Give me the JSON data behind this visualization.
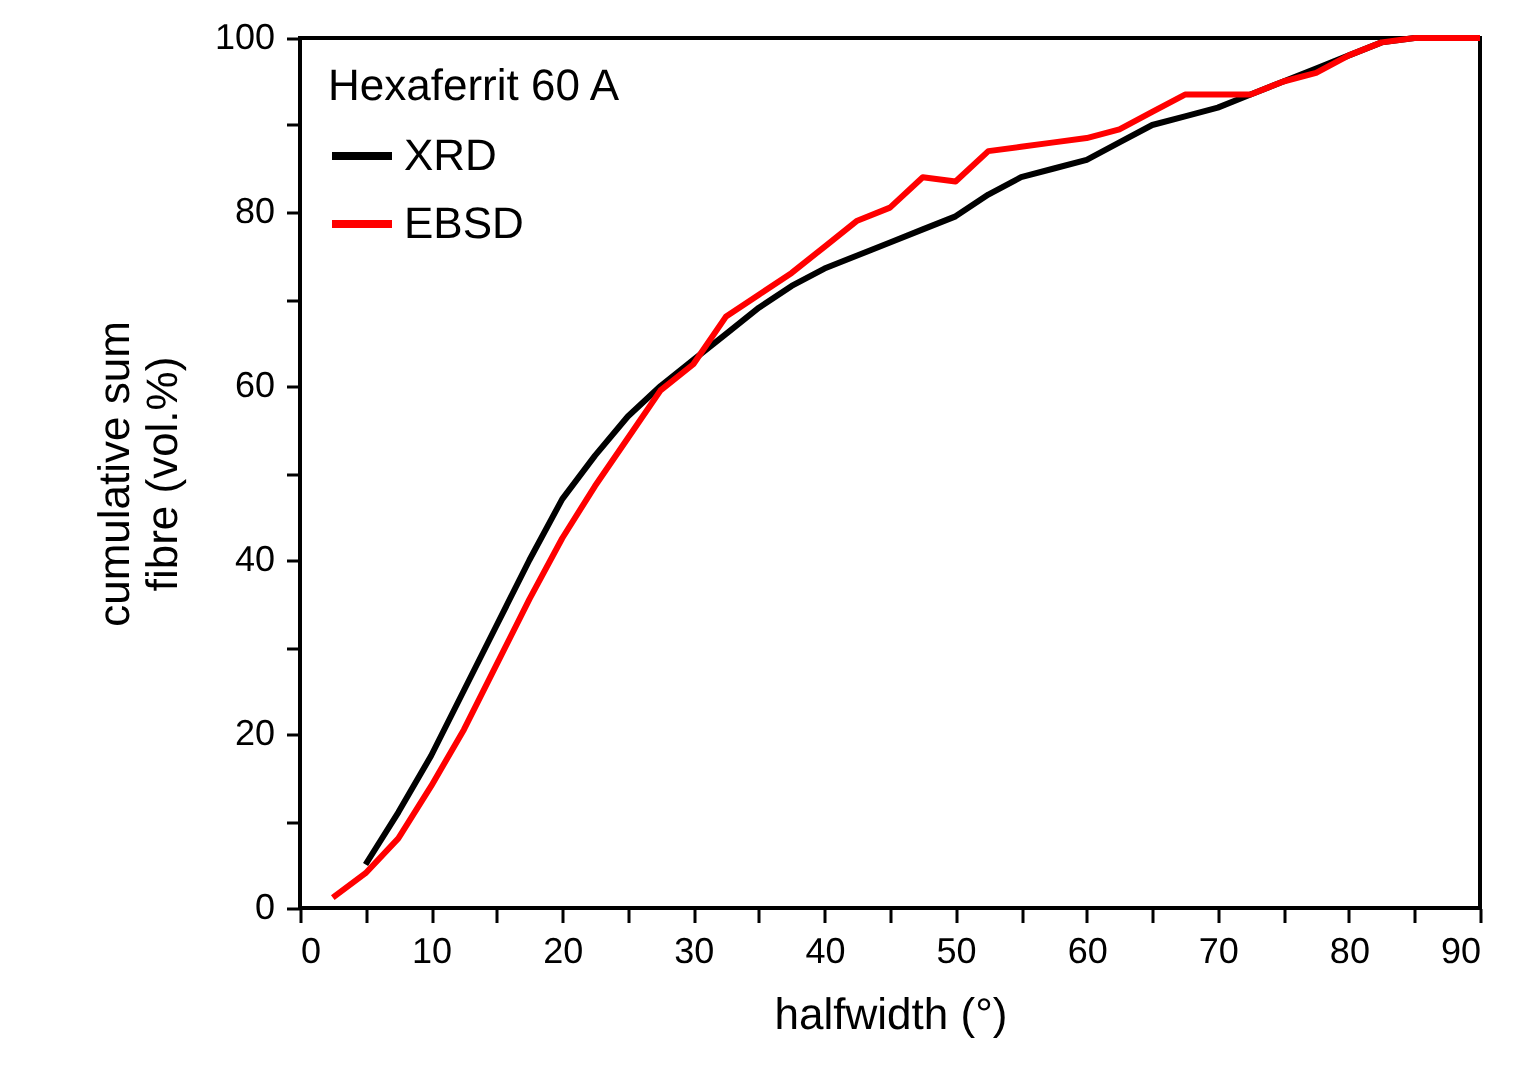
{
  "chart_data": {
    "type": "line",
    "xlabel": "halfwidth (°)",
    "ylabel": "cumulative sum fibre (vol.%)",
    "legend_title": "Hexaferrit 60 A",
    "legend": "top left",
    "grid": false,
    "line_style": "solid",
    "marker": "none",
    "xlim": [
      0,
      90
    ],
    "ylim": [
      0,
      100
    ],
    "xticks": [
      0,
      {
        "value": 5,
        "label": null
      },
      10,
      {
        "value": 15,
        "label": null
      },
      20,
      {
        "value": 25,
        "label": null
      },
      30,
      {
        "value": 35,
        "label": null
      },
      40,
      {
        "value": 45,
        "label": null
      },
      50,
      {
        "value": 55,
        "label": null
      },
      60,
      {
        "value": 65,
        "label": null
      },
      70,
      {
        "value": 75,
        "label": null
      },
      80,
      {
        "value": 85,
        "label": null
      },
      90
    ],
    "yticks": [
      0,
      {
        "value": 10,
        "label": null
      },
      20,
      {
        "value": 30,
        "label": null
      },
      40,
      {
        "value": 50,
        "label": null
      },
      60,
      {
        "value": 70,
        "label": null
      },
      80,
      {
        "value": 90,
        "label": null
      },
      100
    ],
    "series": [
      {
        "name": "XRD",
        "color": "#000000",
        "x": [
          5,
          7.5,
          10,
          12.5,
          15,
          17.5,
          20,
          22.5,
          25,
          27.5,
          30,
          32.5,
          35,
          37.5,
          40,
          42.5,
          45,
          47.5,
          50,
          52.5,
          55,
          57.5,
          60,
          62.5,
          65,
          67.5,
          70,
          72.5,
          75,
          77.5,
          80,
          82.5,
          85,
          87.5,
          90
        ],
        "values": [
          5,
          11,
          17.5,
          25,
          32.5,
          40,
          47,
          52,
          56.5,
          60,
          63,
          66,
          69,
          71.5,
          73.5,
          75,
          76.5,
          78,
          79.5,
          82,
          84,
          85,
          86,
          88,
          90,
          91,
          92,
          93.5,
          95,
          96.5,
          98,
          99.5,
          100,
          100,
          100
        ]
      },
      {
        "name": "EBSD",
        "color": "#ff0000",
        "x": [
          2.5,
          5,
          7.5,
          10,
          12.5,
          15,
          17.5,
          20,
          22.5,
          25,
          27.5,
          30,
          32.5,
          35,
          37.5,
          40,
          42.5,
          45,
          47.5,
          50,
          52.5,
          55,
          57.5,
          60,
          62.5,
          65,
          67.5,
          70,
          72.5,
          75,
          77.5,
          80,
          82.5,
          85,
          87.5,
          90
        ],
        "values": [
          1.2,
          4,
          8,
          14,
          20.5,
          28,
          35.5,
          42.5,
          48.5,
          54,
          59.5,
          62.5,
          68,
          70.5,
          73,
          76,
          79,
          80.5,
          84,
          83.5,
          87,
          87.5,
          88,
          88.5,
          89.5,
          91.5,
          93.5,
          93.5,
          93.5,
          95,
          96,
          98,
          99.5,
          100,
          100,
          100
        ]
      }
    ]
  }
}
